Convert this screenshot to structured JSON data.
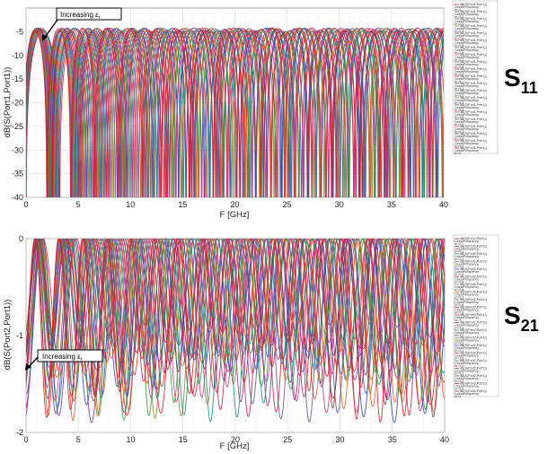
{
  "figure": {
    "label_top": {
      "main": "S",
      "sub": "11"
    },
    "label_bottom": {
      "main": "S",
      "sub": "21"
    },
    "annotation_top": {
      "text": "Increasing ",
      "symbol": "ε",
      "sub": "r"
    },
    "annotation_bottom": {
      "text": "Increasing ",
      "symbol": "ε",
      "sub": "r"
    }
  },
  "chart_data": [
    {
      "type": "line",
      "xlabel": "F [GHz]",
      "ylabel": "dB(S(Port1,Port1))",
      "xlim": [
        0,
        40
      ],
      "ylim": [
        -40,
        0
      ],
      "xticks": [
        "0",
        "5",
        "10",
        "15",
        "20",
        "25",
        "30",
        "35",
        "40"
      ],
      "yticks": [
        "-5",
        "-10",
        "-15",
        "-20",
        "-25",
        "-30",
        "-35",
        "-40"
      ],
      "grid": true,
      "legend": "right",
      "parameter": "er",
      "parameter_values": [
        2,
        2.1,
        2.2,
        2.3,
        2.4,
        2.5,
        2.6,
        2.7,
        2.8,
        2.9,
        3.0,
        3.1,
        3.2,
        3.3,
        3.4,
        3.5,
        3.6,
        3.7,
        3.8,
        3.9,
        4.0
      ],
      "series_legend_text": {
        "line1": "dB(S(Port1,Port1))",
        "line2": "LinearFrequency",
        "prefix": "er="
      },
      "legend_values_printed": [
        "2",
        "2.1",
        "2.2",
        "2.3",
        "2.4",
        "2.5",
        "2.6",
        "2.7",
        "2.8",
        "2.9",
        "3",
        "3.1",
        "3.2",
        "3.3",
        "3.4",
        "3.5",
        "3.6",
        "3.7",
        "3.8",
        "3.9",
        "4"
      ],
      "approx_first_peak_db": -4.5,
      "approx_first_null_ghz": 3.2,
      "series_colors": [
        "#d6202a",
        "#8a2a8a",
        "#1a8a8a",
        "#a07a3a",
        "#2a4aa8",
        "#c43a8a",
        "#3a9a3a",
        "#e05a20",
        "#555599",
        "#bb2244"
      ]
    },
    {
      "type": "line",
      "xlabel": "F [GHz]",
      "ylabel": "dB(S(Port2,Port1))",
      "xlim": [
        0,
        40
      ],
      "ylim": [
        -2,
        0
      ],
      "xticks": [
        "0",
        "5",
        "10",
        "15",
        "20",
        "25",
        "30",
        "35",
        "40"
      ],
      "yticks": [
        "0",
        "-1",
        "-2"
      ],
      "grid": true,
      "legend": "right",
      "parameter": "er",
      "parameter_values": [
        2,
        2.1,
        2.2,
        2.3,
        2.4,
        2.5,
        2.6,
        2.7,
        2.8,
        2.9,
        3.0,
        3.1,
        3.2,
        3.3,
        3.4,
        3.5,
        3.6,
        3.7,
        3.8,
        3.9,
        4.0
      ],
      "series_legend_text": {
        "line1": "dB(S(Port2,Port1))",
        "line2": "LinearFrequency",
        "prefix": "er="
      },
      "legend_values_printed": [
        "2",
        "2.1",
        "2.2",
        "2.3",
        "2.4",
        "2.5",
        "2.6",
        "2.7",
        "2.8",
        "2.9",
        "3",
        "3.1",
        "3.2",
        "3.3",
        "3.4",
        "3.5",
        "3.6",
        "3.7",
        "3.8",
        "3.9",
        "4"
      ],
      "approx_min_db": -1.9,
      "series_colors": [
        "#d6202a",
        "#8a2a8a",
        "#1a8a8a",
        "#a07a3a",
        "#2a4aa8",
        "#c43a8a",
        "#3a9a3a",
        "#e05a20",
        "#555599",
        "#bb2244"
      ]
    }
  ]
}
